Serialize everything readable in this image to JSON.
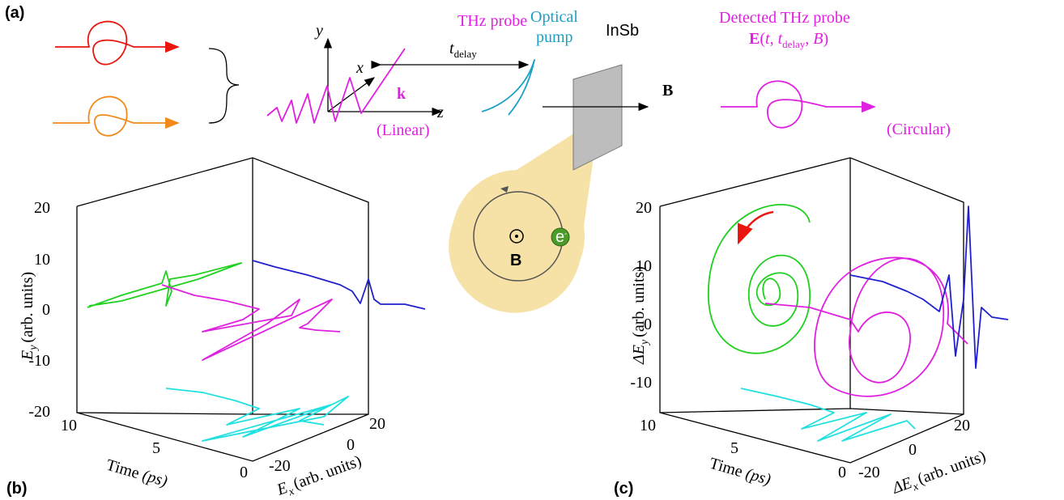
{
  "panel_a": {
    "label": "(a)",
    "axis_y": "y",
    "axis_x": "x",
    "axis_z": "z",
    "probe_title": "THz probe",
    "k": "k",
    "linear": "(Linear)",
    "t_delay": {
      "base": "t",
      "sub": "delay"
    },
    "pump": [
      "Optical",
      "pump"
    ],
    "sample": "InSb",
    "field": "B",
    "detected": "Detected THz probe",
    "detected_expr": [
      "E",
      "(",
      "t",
      ", ",
      "t",
      "delay",
      ", ",
      "B",
      ")"
    ],
    "circular": "(Circular)"
  },
  "inset": {
    "field": "B",
    "electron": "e",
    "charge": "-"
  },
  "panel_b": {
    "label": "(b)",
    "y_label": {
      "base": "E",
      "sub": "y",
      "unit": "(arb. units)"
    },
    "yticks": [
      "20",
      "10",
      "0",
      "-10",
      "-20"
    ],
    "time_ticks": [
      "10",
      "5",
      "0"
    ],
    "time_label": {
      "text": "Time ",
      "unit": "(ps)"
    },
    "x_ticks": [
      "-20",
      "0",
      "20"
    ],
    "x_label": {
      "base": "E",
      "sub": "x",
      "unit": "(arb. units)"
    }
  },
  "panel_c": {
    "label": "(c)",
    "y_label": {
      "base": "ΔE",
      "sub": "y",
      "unit": "(arb. units)"
    },
    "yticks": [
      "20",
      "10",
      "0",
      "-10"
    ],
    "time_ticks": [
      "10",
      "5",
      "0"
    ],
    "time_label": {
      "text": "Time ",
      "unit": "(ps)"
    },
    "x_ticks": [
      "-20",
      "0",
      "20"
    ],
    "x_label": {
      "base": "ΔE",
      "sub": "x",
      "unit": "(arb. units)"
    }
  }
}
